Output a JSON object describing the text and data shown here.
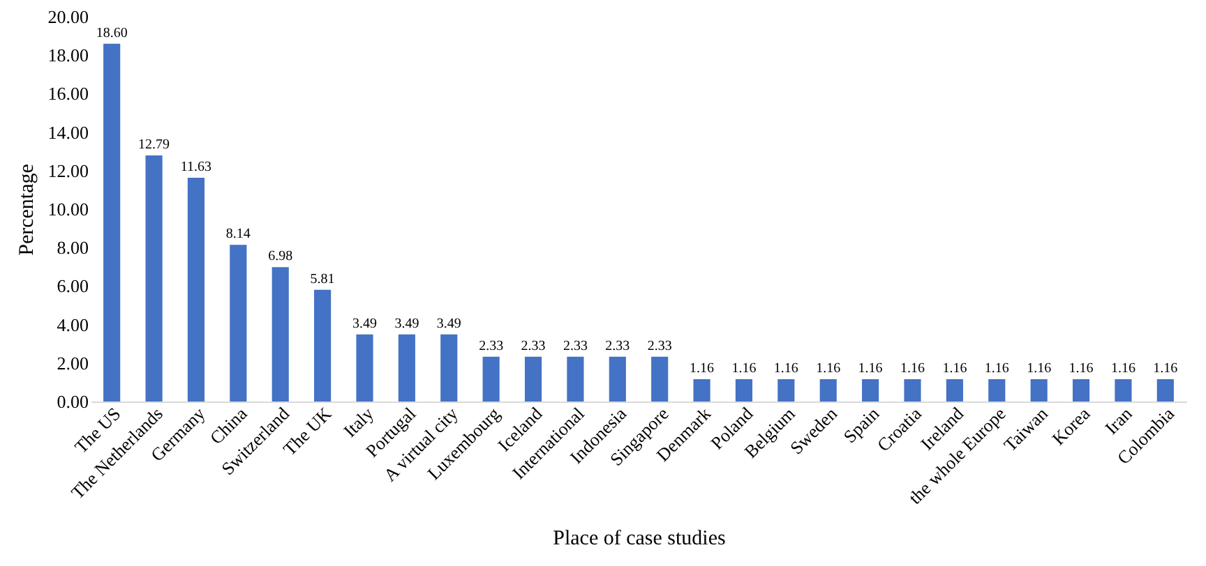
{
  "chart_data": {
    "type": "bar",
    "xlabel": "Place of case studies",
    "ylabel": "Percentage",
    "categories": [
      "The US",
      "The Netherlands",
      "Germany",
      "China",
      "Switzerland",
      "The UK",
      "Italy",
      "Portugal",
      "A virtual city",
      "Luxembourg",
      "Iceland",
      "International",
      "Indonesia",
      "Singapore",
      "Denmark",
      "Poland",
      "Belgium",
      "Sweden",
      "Spain",
      "Croatia",
      "Ireland",
      "the whole Europe",
      "Taiwan",
      "Korea",
      "Iran",
      "Colombia"
    ],
    "values": [
      18.6,
      12.79,
      11.63,
      8.14,
      6.98,
      5.81,
      3.49,
      3.49,
      3.49,
      2.33,
      2.33,
      2.33,
      2.33,
      2.33,
      1.16,
      1.16,
      1.16,
      1.16,
      1.16,
      1.16,
      1.16,
      1.16,
      1.16,
      1.16,
      1.16,
      1.16
    ],
    "value_labels": [
      "18.60",
      "12.79",
      "11.63",
      "8.14",
      "6.98",
      "5.81",
      "3.49",
      "3.49",
      "3.49",
      "2.33",
      "2.33",
      "2.33",
      "2.33",
      "2.33",
      "1.16",
      "1.16",
      "1.16",
      "1.16",
      "1.16",
      "1.16",
      "1.16",
      "1.16",
      "1.16",
      "1.16",
      "1.16",
      "1.16"
    ],
    "color": "#4472c4",
    "ylim": [
      0,
      20
    ],
    "yticks": [
      {
        "value": 0,
        "label": "0.00"
      },
      {
        "value": 2,
        "label": "2.00"
      },
      {
        "value": 4,
        "label": "4.00"
      },
      {
        "value": 6,
        "label": "6.00"
      },
      {
        "value": 8,
        "label": "8.00"
      },
      {
        "value": 10,
        "label": "10.00"
      },
      {
        "value": 12,
        "label": "12.00"
      },
      {
        "value": 14,
        "label": "14.00"
      },
      {
        "value": 16,
        "label": "16.00"
      },
      {
        "value": 18,
        "label": "18.00"
      },
      {
        "value": 20,
        "label": "20.00"
      }
    ],
    "grid": false
  }
}
